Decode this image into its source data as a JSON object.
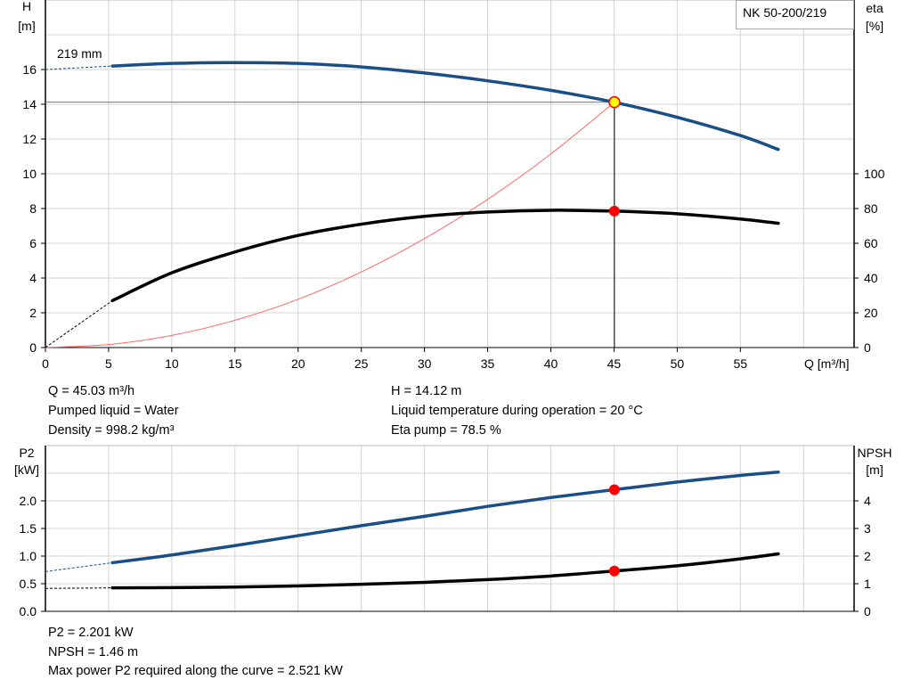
{
  "chart_data": [
    {
      "type": "line",
      "title": "NK 50-200/219",
      "xlabel": "Q [m³/h]",
      "xlim": [
        0,
        64
      ],
      "xticks": [
        0,
        5,
        10,
        15,
        20,
        25,
        30,
        35,
        40,
        45,
        50,
        55
      ],
      "ylabel_left": [
        "H",
        "[m]"
      ],
      "ylim_left": [
        0,
        20
      ],
      "yticks_left": [
        0,
        2,
        4,
        6,
        8,
        10,
        12,
        14,
        16
      ],
      "ylabel_right": [
        "eta",
        "[%]"
      ],
      "ylim_right": [
        0,
        200
      ],
      "yticks_right": [
        0,
        20,
        40,
        60,
        80,
        100
      ],
      "grid": true,
      "curve_label": "219 mm",
      "series": [
        {
          "axis": "left",
          "color": "#1a4f86",
          "x": [
            5.3,
            10,
            15,
            20,
            25,
            30,
            35,
            40,
            45,
            50,
            55,
            58
          ],
          "y": [
            16.2,
            16.35,
            16.4,
            16.35,
            16.15,
            15.8,
            15.35,
            14.8,
            14.12,
            13.25,
            12.2,
            11.4
          ],
          "extrapolated_from": [
            0,
            16.0
          ]
        },
        {
          "axis": "right",
          "color": "#000000",
          "x": [
            5.3,
            10,
            15,
            20,
            25,
            30,
            35,
            40,
            45,
            50,
            55,
            58
          ],
          "y": [
            27,
            43,
            55,
            64.5,
            71,
            75.5,
            78,
            79,
            78.5,
            77,
            74,
            71.5
          ],
          "extrapolated_from": [
            0,
            0
          ]
        },
        {
          "axis": "left",
          "color": "#ff6666",
          "type": "system",
          "x": [
            0,
            5,
            10,
            15,
            20,
            25,
            30,
            35,
            40,
            45.03
          ],
          "y": [
            0,
            0.17,
            0.7,
            1.57,
            2.78,
            4.35,
            6.27,
            8.53,
            11.14,
            14.12
          ]
        }
      ],
      "duty_point": {
        "Q": 45.03,
        "H": 14.12,
        "eta": 78.5
      }
    },
    {
      "type": "line",
      "xlim": [
        0,
        64
      ],
      "ylabel_left": [
        "P2",
        "[kW]"
      ],
      "ylim_left": [
        0,
        3.0
      ],
      "yticks_left": [
        "0.0",
        "0.5",
        "1.0",
        "1.5",
        "2.0"
      ],
      "ylabel_right": [
        "NPSH",
        "[m]"
      ],
      "ylim_right": [
        0,
        6
      ],
      "yticks_right": [
        0,
        1,
        2,
        3,
        4
      ],
      "series": [
        {
          "axis": "left",
          "color": "#1a4f86",
          "x": [
            5.3,
            10,
            15,
            20,
            25,
            30,
            35,
            40,
            45,
            50,
            55,
            58
          ],
          "y": [
            0.88,
            1.02,
            1.19,
            1.37,
            1.55,
            1.72,
            1.9,
            2.06,
            2.201,
            2.34,
            2.46,
            2.52
          ],
          "extrapolated_from": [
            0,
            0.72
          ]
        },
        {
          "axis": "right",
          "color": "#000000",
          "x": [
            5.3,
            10,
            15,
            20,
            25,
            30,
            35,
            40,
            45,
            50,
            55,
            58
          ],
          "y": [
            0.85,
            0.86,
            0.88,
            0.92,
            0.98,
            1.05,
            1.15,
            1.28,
            1.46,
            1.65,
            1.9,
            2.08
          ],
          "extrapolated_from": [
            0,
            0.83
          ]
        }
      ],
      "duty_point": {
        "Q": 45.03,
        "P2": 2.201,
        "NPSH": 1.46
      }
    }
  ],
  "info": {
    "q": "Q = 45.03 m³/h",
    "h": "H = 14.12 m",
    "liquid": "Pumped liquid = Water",
    "temp": "Liquid temperature during operation = 20 °C",
    "density": "Density = 998.2 kg/m³",
    "eta": "Eta pump = 78.5 %",
    "p2": "P2 = 2.201 kW",
    "npsh": "NPSH = 1.46 m",
    "maxp2": "Max power P2 required along the curve = 2.521 kW"
  }
}
